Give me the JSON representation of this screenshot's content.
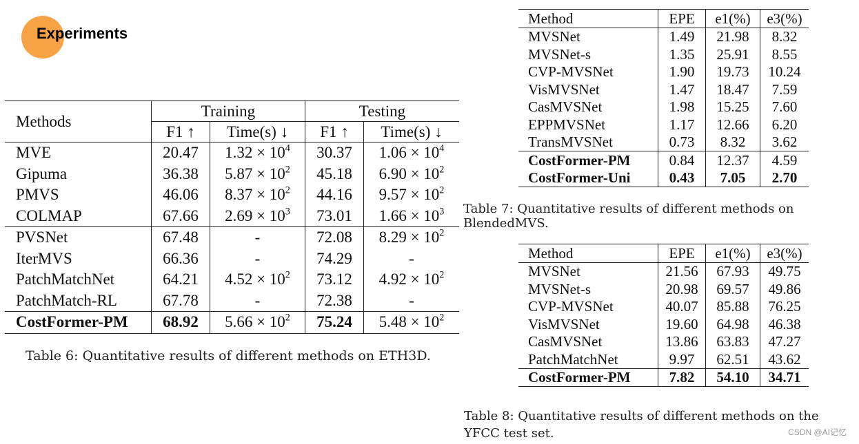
{
  "header": {
    "title": "Experiments",
    "accent_color": "#F7A245"
  },
  "table6": {
    "header": {
      "methods": "Methods",
      "training": "Training",
      "testing": "Testing",
      "f1": "F1 ↑",
      "time": "Time(s) ↓"
    },
    "rows": [
      {
        "method": "MVE",
        "train_f1": "20.47",
        "train_time": "1.32 × 10",
        "train_exp": "4",
        "test_f1": "30.37",
        "test_time": "1.06 × 10",
        "test_exp": "4"
      },
      {
        "method": "Gipuma",
        "train_f1": "36.38",
        "train_time": "5.87 × 10",
        "train_exp": "2",
        "test_f1": "45.18",
        "test_time": "6.90 × 10",
        "test_exp": "2"
      },
      {
        "method": "PMVS",
        "train_f1": "46.06",
        "train_time": "8.37 × 10",
        "train_exp": "2",
        "test_f1": "44.16",
        "test_time": "9.57 × 10",
        "test_exp": "2"
      },
      {
        "method": "COLMAP",
        "train_f1": "67.66",
        "train_time": "2.69 × 10",
        "train_exp": "3",
        "test_f1": "73.01",
        "test_time": "1.66 × 10",
        "test_exp": "3"
      },
      {
        "method": "PVSNet",
        "train_f1": "67.48",
        "train_time": "-",
        "train_exp": "",
        "test_f1": "72.08",
        "test_time": "8.29 × 10",
        "test_exp": "2"
      },
      {
        "method": "IterMVS",
        "train_f1": "66.36",
        "train_time": "-",
        "train_exp": "",
        "test_f1": "74.29",
        "test_time": "-",
        "test_exp": ""
      },
      {
        "method": "PatchMatchNet",
        "train_f1": "64.21",
        "train_time": "4.52 × 10",
        "train_exp": "2",
        "test_f1": "73.12",
        "test_time": "4.92 × 10",
        "test_exp": "2"
      },
      {
        "method": "PatchMatch-RL",
        "train_f1": "67.78",
        "train_time": "-",
        "train_exp": "",
        "test_f1": "72.38",
        "test_time": "-",
        "test_exp": ""
      },
      {
        "method": "CostFormer-PM",
        "train_f1": "68.92",
        "train_time": "5.66 × 10",
        "train_exp": "2",
        "test_f1": "75.24",
        "test_time": "5.48 × 10",
        "test_exp": "2"
      }
    ],
    "caption": "Table 6: Quantitative results of different methods on ETH3D."
  },
  "table7": {
    "header": {
      "method": "Method",
      "epe": "EPE",
      "e1": "e1(%)",
      "e3": "e3(%)"
    },
    "rows": [
      {
        "method": "MVSNet",
        "epe": "1.49",
        "e1": "21.98",
        "e3": "8.32"
      },
      {
        "method": "MVSNet-s",
        "epe": "1.35",
        "e1": "25.91",
        "e3": "8.55"
      },
      {
        "method": "CVP-MVSNet",
        "epe": "1.90",
        "e1": "19.73",
        "e3": "10.24"
      },
      {
        "method": "VisMVSNet",
        "epe": "1.47",
        "e1": "18.47",
        "e3": "7.59"
      },
      {
        "method": "CasMVSNet",
        "epe": "1.98",
        "e1": "15.25",
        "e3": "7.60"
      },
      {
        "method": "EPPMVSNet",
        "epe": "1.17",
        "e1": "12.66",
        "e3": "6.20"
      },
      {
        "method": "TransMVSNet",
        "epe": "0.73",
        "e1": "8.32",
        "e3": "3.62"
      },
      {
        "method": "CostFormer-PM",
        "epe": "0.84",
        "e1": "12.37",
        "e3": "4.59"
      },
      {
        "method": "CostFormer-Uni",
        "epe": "0.43",
        "e1": "7.05",
        "e3": "2.70"
      }
    ],
    "caption": "Table 7: Quantitative results of different methods on BlendedMVS."
  },
  "table8": {
    "header": {
      "method": "Method",
      "epe": "EPE",
      "e1": "e1(%)",
      "e3": "e3(%)"
    },
    "rows": [
      {
        "method": "MVSNet",
        "epe": "21.56",
        "e1": "67.93",
        "e3": "49.75"
      },
      {
        "method": "MVSNet-s",
        "epe": "20.98",
        "e1": "69.57",
        "e3": "49.86"
      },
      {
        "method": "CVP-MVSNet",
        "epe": "40.07",
        "e1": "85.88",
        "e3": "76.25"
      },
      {
        "method": "VisMVSNet",
        "epe": "19.60",
        "e1": "64.98",
        "e3": "46.38"
      },
      {
        "method": "CasMVSNet",
        "epe": "13.86",
        "e1": "63.83",
        "e3": "47.27"
      },
      {
        "method": "PatchMatchNet",
        "epe": "9.97",
        "e1": "62.51",
        "e3": "43.62"
      },
      {
        "method": "CostFormer-PM",
        "epe": "7.82",
        "e1": "54.10",
        "e3": "34.71"
      }
    ],
    "caption": "Table 8: Quantitative results of different methods on the YFCC test set."
  },
  "watermark": "CSDN @AI记忆"
}
